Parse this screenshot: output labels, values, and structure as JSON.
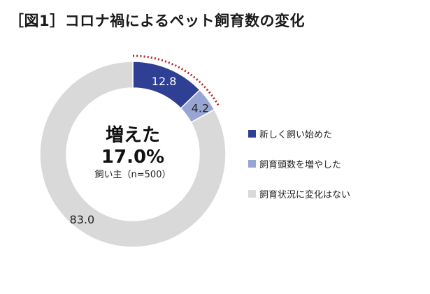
{
  "title": "［図1］コロナ禍によるペット飼育数の変化",
  "center": {
    "heading": "増えた",
    "value": "17.0%",
    "note": "飼い主（n=500）"
  },
  "colors": {
    "new_owner": "#2e3f94",
    "increased": "#98a4d2",
    "unchanged": "#d9d9d9",
    "highlight_arc": "#c0202a"
  },
  "chart_data": {
    "type": "pie",
    "variant": "donut",
    "unit": "%",
    "labels": [
      "新しく飼い始めた",
      "飼育頭数を増やした",
      "飼育状況に変化はない"
    ],
    "values": [
      12.8,
      4.2,
      83.0
    ],
    "value_labels": [
      "12.8",
      "4.2",
      "83.0"
    ],
    "colors": [
      "#2e3f94",
      "#98a4d2",
      "#d9d9d9"
    ],
    "start_angle": "12 o'clock",
    "direction": "clockwise",
    "legend_position": "right",
    "highlight": "dotted red arc around the 新しく飼い始めた and 飼育頭数を増やした segments"
  }
}
